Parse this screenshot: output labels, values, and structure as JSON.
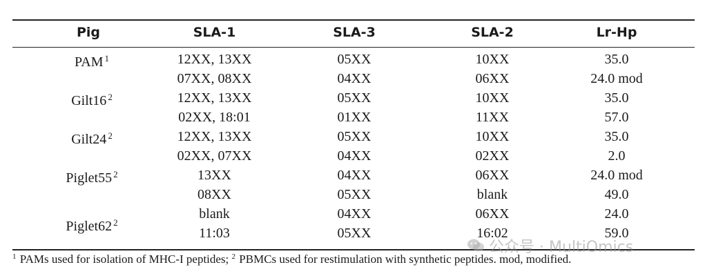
{
  "table": {
    "headers": {
      "pig": "Pig",
      "sla1": "SLA-1",
      "sla3": "SLA-3",
      "sla2": "SLA-2",
      "lrhp": "Lr-Hp"
    },
    "pigs": [
      {
        "name": "PAM",
        "sup": "1"
      },
      {
        "name": "Gilt16",
        "sup": "2"
      },
      {
        "name": "Gilt24",
        "sup": "2"
      },
      {
        "name": "Piglet55",
        "sup": "2"
      },
      {
        "name": "Piglet62",
        "sup": "2"
      }
    ],
    "rows": [
      {
        "sla1": "12XX, 13XX",
        "sla3": "05XX",
        "sla2": "10XX",
        "lrhp": "35.0"
      },
      {
        "sla1": "07XX, 08XX",
        "sla3": "04XX",
        "sla2": "06XX",
        "lrhp": "24.0 mod"
      },
      {
        "sla1": "12XX, 13XX",
        "sla3": "05XX",
        "sla2": "10XX",
        "lrhp": "35.0"
      },
      {
        "sla1": "02XX, 18:01",
        "sla3": "01XX",
        "sla2": "11XX",
        "lrhp": "57.0"
      },
      {
        "sla1": "12XX, 13XX",
        "sla3": "05XX",
        "sla2": "10XX",
        "lrhp": "35.0"
      },
      {
        "sla1": "02XX, 07XX",
        "sla3": "04XX",
        "sla2": "02XX",
        "lrhp": "2.0"
      },
      {
        "sla1": "13XX",
        "sla3": "04XX",
        "sla2": "06XX",
        "lrhp": "24.0 mod"
      },
      {
        "sla1": "08XX",
        "sla3": "05XX",
        "sla2": "blank",
        "lrhp": "49.0"
      },
      {
        "sla1": "blank",
        "sla3": "04XX",
        "sla2": "06XX",
        "lrhp": "24.0"
      },
      {
        "sla1": "11:03",
        "sla3": "05XX",
        "sla2": "16:02",
        "lrhp": "59.0"
      }
    ]
  },
  "footnote": {
    "sup1": "1",
    "text1": " PAMs used for isolation of MHC-I peptides; ",
    "sup2": "2",
    "text2": " PBMCs used for restimulation with synthetic peptides. mod, modified."
  },
  "watermark": {
    "text": "公众号 · MultiOmics"
  }
}
